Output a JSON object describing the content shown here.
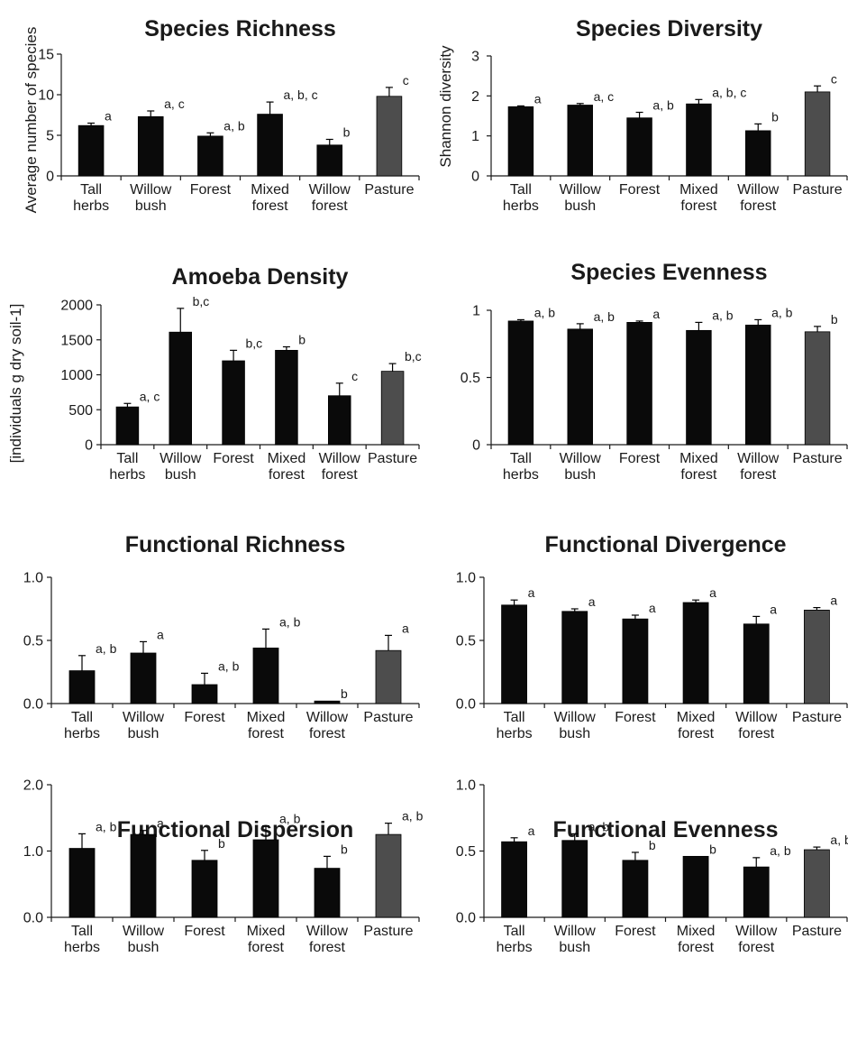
{
  "figure": {
    "categories": [
      [
        "Tall",
        "herbs"
      ],
      [
        "Willow",
        "bush"
      ],
      [
        "Forest"
      ],
      [
        "Mixed",
        "forest"
      ],
      [
        "Willow",
        "forest"
      ],
      [
        "Pasture"
      ]
    ],
    "colors": {
      "bar": "#0a0a0a",
      "highlight": "#4d4d4d",
      "axis": "#1a1a1a"
    }
  },
  "chart_data": [
    {
      "type": "bar",
      "title": "Species Richness",
      "ylabel": "Average number of species",
      "ylim": [
        0,
        15
      ],
      "yticks": [
        "0",
        "5",
        "10",
        "15"
      ],
      "values": [
        6.2,
        7.3,
        4.9,
        7.6,
        3.8,
        9.8
      ],
      "errors": [
        0.3,
        0.7,
        0.4,
        1.5,
        0.7,
        1.1
      ],
      "significance": [
        "a",
        "a, c",
        "a, b",
        "a, b, c",
        "b",
        "c"
      ]
    },
    {
      "type": "bar",
      "title": "Species Diversity",
      "ylabel": "Shannon diversity",
      "ylim": [
        0,
        3
      ],
      "yticks": [
        "0",
        "1",
        "2",
        "3"
      ],
      "values": [
        1.73,
        1.77,
        1.45,
        1.8,
        1.13,
        2.1
      ],
      "errors": [
        0.02,
        0.04,
        0.14,
        0.11,
        0.17,
        0.15
      ],
      "significance": [
        "a",
        "a, c",
        "a, b",
        "a, b, c",
        "b",
        "c"
      ]
    },
    {
      "type": "bar",
      "title": "Amoeba Density",
      "ylabel": "[individuals g dry soil-1]",
      "ylim": [
        0,
        2000
      ],
      "yticks": [
        "0",
        "500",
        "1000",
        "1500",
        "2000"
      ],
      "values": [
        540,
        1610,
        1200,
        1350,
        700,
        1050
      ],
      "errors": [
        50,
        340,
        150,
        50,
        180,
        110
      ],
      "significance": [
        "a, c",
        "b,c",
        "b,c",
        "b",
        "c",
        "b,c"
      ]
    },
    {
      "type": "bar",
      "title": "Species Evenness",
      "ylabel": "",
      "ylim": [
        0,
        1
      ],
      "yticks": [
        "0",
        "0.5",
        "1"
      ],
      "values": [
        0.92,
        0.86,
        0.91,
        0.85,
        0.89,
        0.84
      ],
      "errors": [
        0.01,
        0.04,
        0.01,
        0.06,
        0.04,
        0.04
      ],
      "significance": [
        "a, b",
        "a, b",
        "a",
        "a, b",
        "a, b",
        "b"
      ]
    },
    {
      "type": "bar",
      "title": "Functional Richness",
      "ylabel": "",
      "ylim": [
        0,
        1
      ],
      "yticks": [
        "0.0",
        "0.5",
        "1.0"
      ],
      "values": [
        0.26,
        0.4,
        0.15,
        0.44,
        0.02,
        0.42
      ],
      "errors": [
        0.12,
        0.09,
        0.09,
        0.15,
        0.0,
        0.12
      ],
      "significance": [
        "a, b",
        "a",
        "a, b",
        "a, b",
        "b",
        "a"
      ]
    },
    {
      "type": "bar",
      "title": "Functional Divergence",
      "ylabel": "",
      "ylim": [
        0,
        1
      ],
      "yticks": [
        "0.0",
        "0.5",
        "1.0"
      ],
      "values": [
        0.78,
        0.73,
        0.67,
        0.8,
        0.63,
        0.74
      ],
      "errors": [
        0.04,
        0.02,
        0.03,
        0.02,
        0.06,
        0.02
      ],
      "significance": [
        "a",
        "a",
        "a",
        "a",
        "a",
        "a"
      ]
    },
    {
      "type": "bar",
      "title": "Functional Dispersion",
      "ylabel": "",
      "ylim": [
        0,
        2
      ],
      "yticks": [
        "0.0",
        "1.0",
        "2.0"
      ],
      "values": [
        1.04,
        1.25,
        0.86,
        1.17,
        0.74,
        1.25
      ],
      "errors": [
        0.22,
        0.06,
        0.15,
        0.21,
        0.18,
        0.17
      ],
      "significance": [
        "a, b",
        "a",
        "b",
        "a, b",
        "b",
        "a, b"
      ]
    },
    {
      "type": "bar",
      "title": "Functional Evenness",
      "ylabel": "",
      "ylim": [
        0,
        1
      ],
      "yticks": [
        "0.0",
        "0.5",
        "1.0"
      ],
      "values": [
        0.57,
        0.58,
        0.43,
        0.46,
        0.38,
        0.51
      ],
      "errors": [
        0.03,
        0.05,
        0.06,
        0.0,
        0.07,
        0.02
      ],
      "significance": [
        "a",
        "a, b",
        "b",
        "b",
        "a, b",
        "a, b"
      ]
    }
  ]
}
